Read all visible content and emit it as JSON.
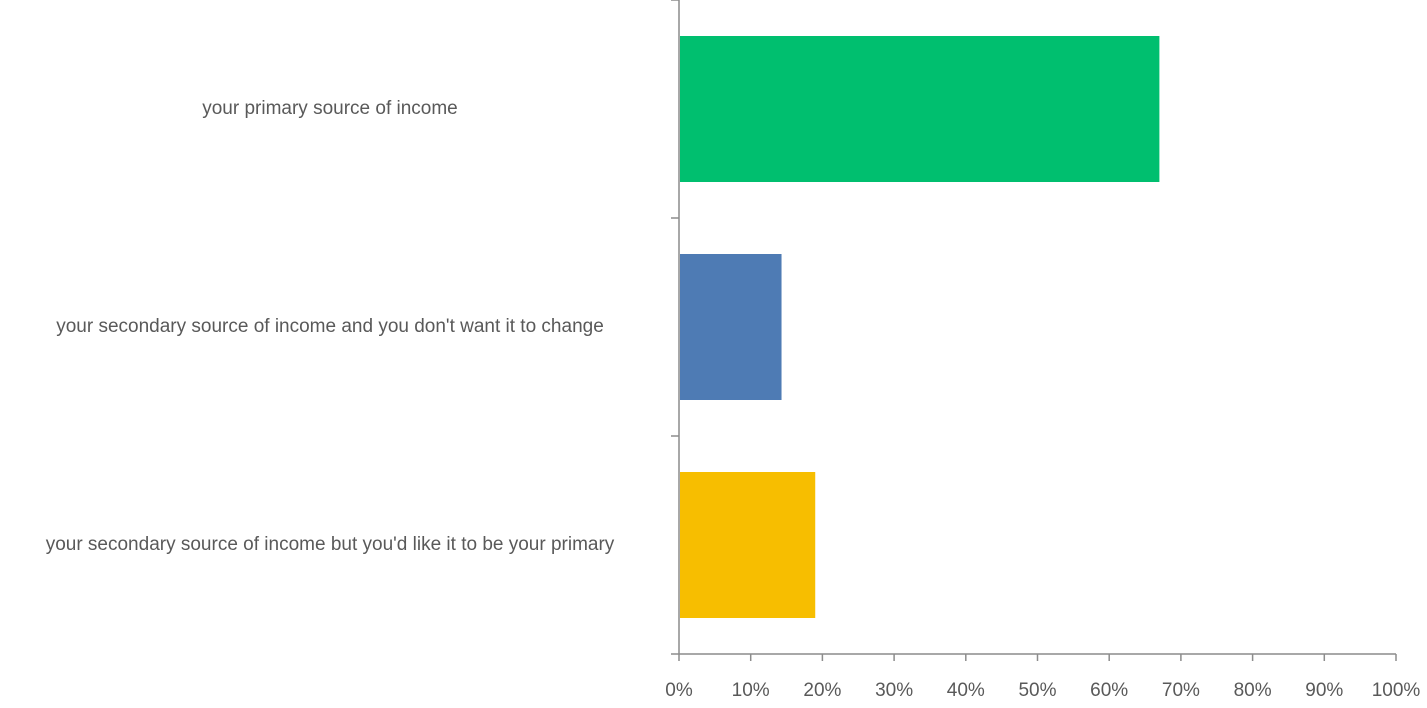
{
  "chart_data": {
    "type": "bar",
    "orientation": "horizontal",
    "categories": [
      "your primary source of income",
      "your secondary source of income and you don't want it to change",
      "your secondary source of income but you'd like it to be your primary"
    ],
    "values": [
      67,
      14.3,
      19
    ],
    "value_unit": "%",
    "colors": [
      "#00BF6F",
      "#4E7BB4",
      "#F7BE00"
    ],
    "xlim": [
      0,
      100
    ],
    "x_ticks": [
      "0%",
      "10%",
      "20%",
      "30%",
      "40%",
      "50%",
      "60%",
      "70%",
      "80%",
      "90%",
      "100%"
    ],
    "title": "",
    "xlabel": "",
    "ylabel": "",
    "grid": false,
    "legend": "none"
  }
}
